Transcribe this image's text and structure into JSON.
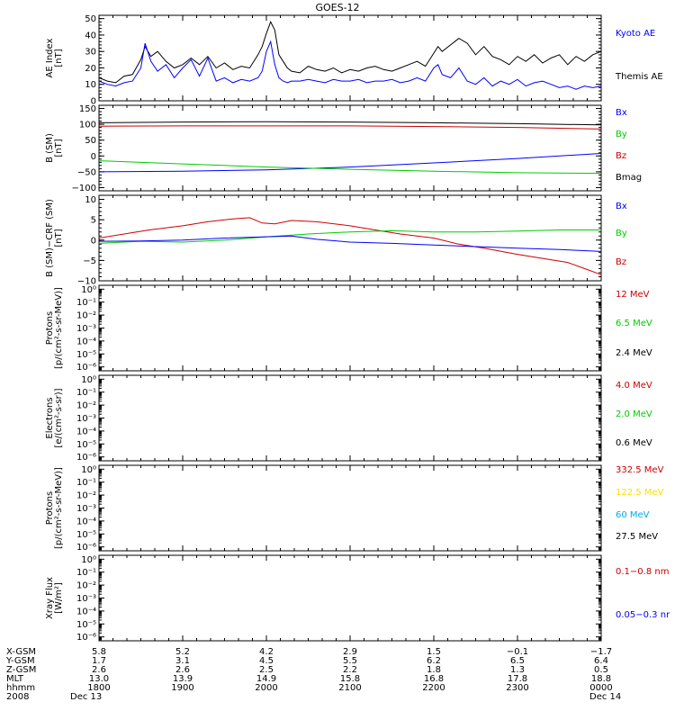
{
  "title": "GOES-12",
  "panels": [
    {
      "id": "ae",
      "ylabel": [
        "AE Index",
        "[nT]"
      ],
      "scale": "linear",
      "ylim": [
        0,
        52
      ],
      "ticks": [
        0,
        10,
        20,
        30,
        40,
        50
      ],
      "tick_labels": [
        "0",
        "10",
        "20",
        "30",
        "40",
        "50"
      ],
      "legend": [
        {
          "label": "Kyoto AE",
          "color": "#0000ff"
        },
        {
          "label": "Themis AE",
          "color": "#000000"
        }
      ]
    },
    {
      "id": "b-sm",
      "ylabel": [
        "B (SM)",
        "[nT]"
      ],
      "scale": "linear",
      "ylim": [
        -110,
        160
      ],
      "ticks": [
        -100,
        -50,
        0,
        50,
        100,
        150
      ],
      "tick_labels": [
        "−100",
        "−50",
        "0",
        "50",
        "100",
        "150"
      ],
      "legend": [
        {
          "label": "Bx",
          "color": "#0000ff"
        },
        {
          "label": "By",
          "color": "#00cc00"
        },
        {
          "label": "Bz",
          "color": "#cc0000"
        },
        {
          "label": "Bmag",
          "color": "#000000"
        }
      ]
    },
    {
      "id": "b-crf",
      "ylabel": [
        "B (SM)−CRF (SM)",
        "[nT]"
      ],
      "scale": "linear",
      "ylim": [
        -10,
        11
      ],
      "ticks": [
        -10,
        -5,
        0,
        5,
        10
      ],
      "tick_labels": [
        "−10",
        "−5",
        "0",
        "5",
        "10"
      ],
      "legend": [
        {
          "label": "Bx",
          "color": "#0000ff"
        },
        {
          "label": "By",
          "color": "#00cc00"
        },
        {
          "label": "Bz",
          "color": "#cc0000"
        }
      ]
    },
    {
      "id": "protons-1",
      "ylabel": [
        "Protons",
        "[p/(cm²-s-sr-MeV)]"
      ],
      "scale": "log",
      "ylim": [
        -6.3,
        0.3
      ],
      "ticks": [
        0,
        -1,
        -2,
        -3,
        -4,
        -5,
        -6
      ],
      "tick_labels": [
        "10⁰",
        "10⁻¹",
        "10⁻²",
        "10⁻³",
        "10⁻⁴",
        "10⁻⁵",
        "10⁻⁶"
      ],
      "legend": [
        {
          "label": "12 MeV",
          "color": "#cc0000"
        },
        {
          "label": "6.5 MeV",
          "color": "#00cc00"
        },
        {
          "label": "2.4 MeV",
          "color": "#000000"
        }
      ]
    },
    {
      "id": "electrons",
      "ylabel": [
        "Electrons",
        "[e/(cm²-s-sr)]"
      ],
      "scale": "log",
      "ylim": [
        -6.3,
        0.3
      ],
      "ticks": [
        0,
        -1,
        -2,
        -3,
        -4,
        -5,
        -6
      ],
      "tick_labels": [
        "10⁰",
        "10⁻¹",
        "10⁻²",
        "10⁻³",
        "10⁻⁴",
        "10⁻⁵",
        "10⁻⁶"
      ],
      "legend": [
        {
          "label": "4.0 MeV",
          "color": "#cc0000"
        },
        {
          "label": "2.0 MeV",
          "color": "#00cc00"
        },
        {
          "label": "0.6 MeV",
          "color": "#000000"
        }
      ]
    },
    {
      "id": "protons-2",
      "ylabel": [
        "Protons",
        "[p/(cm²-s-sr-MeV)]"
      ],
      "scale": "log",
      "ylim": [
        -6.3,
        0.3
      ],
      "ticks": [
        0,
        -1,
        -2,
        -3,
        -4,
        -5,
        -6
      ],
      "tick_labels": [
        "10⁰",
        "10⁻¹",
        "10⁻²",
        "10⁻³",
        "10⁻⁴",
        "10⁻⁵",
        "10⁻⁶"
      ],
      "legend": [
        {
          "label": "332.5 MeV",
          "color": "#cc0000"
        },
        {
          "label": "122.5 MeV",
          "color": "#ffdd00"
        },
        {
          "label": "60 MeV",
          "color": "#00aaee"
        },
        {
          "label": "27.5 MeV",
          "color": "#000000"
        }
      ]
    },
    {
      "id": "xray",
      "ylabel": [
        "Xray Flux",
        "[W/m²]"
      ],
      "scale": "log",
      "ylim": [
        -6.3,
        0.3
      ],
      "ticks": [
        0,
        -1,
        -2,
        -3,
        -4,
        -5,
        -6
      ],
      "tick_labels": [
        "10⁰",
        "10⁻¹",
        "10⁻²",
        "10⁻³",
        "10⁻⁴",
        "10⁻⁵",
        "10⁻⁶"
      ],
      "legend": [
        {
          "label": "0.1−0.8 nm",
          "color": "#cc0000"
        },
        {
          "label": "0.05−0.3 nr",
          "color": "#0000ff"
        }
      ]
    }
  ],
  "x_axis": {
    "row_labels": [
      "X-GSM",
      "Y-GSM",
      "Z-GSM",
      "MLT",
      "hhmm",
      "2008"
    ],
    "columns": [
      {
        "x": 18,
        "values": [
          "5.8",
          "1.7",
          "2.6",
          "13.0",
          "1800",
          "Dec 13"
        ]
      },
      {
        "x": 19,
        "values": [
          "5.2",
          "3.1",
          "2.6",
          "13.9",
          "1900",
          ""
        ]
      },
      {
        "x": 20,
        "values": [
          "4.2",
          "4.5",
          "2.5",
          "14.9",
          "2000",
          ""
        ]
      },
      {
        "x": 21,
        "values": [
          "2.9",
          "5.5",
          "2.2",
          "15.8",
          "2100",
          ""
        ]
      },
      {
        "x": 22,
        "values": [
          "1.5",
          "6.2",
          "1.8",
          "16.8",
          "2200",
          ""
        ]
      },
      {
        "x": 23,
        "values": [
          "−0.1",
          "6.5",
          "1.3",
          "17.8",
          "2300",
          ""
        ]
      },
      {
        "x": 24,
        "values": [
          "−1.7",
          "6.4",
          "0.5",
          "18.8",
          "0000",
          "Dec 14"
        ]
      }
    ],
    "xlim": [
      18,
      24
    ]
  },
  "chart_data": [
    {
      "type": "line",
      "panel": "ae",
      "series": [
        {
          "name": "Themis AE",
          "color": "#000000",
          "x": [
            18.0,
            18.1,
            18.2,
            18.3,
            18.4,
            18.5,
            18.55,
            18.62,
            18.7,
            18.8,
            18.9,
            19.0,
            19.1,
            19.2,
            19.3,
            19.4,
            19.5,
            19.6,
            19.7,
            19.8,
            19.9,
            19.95,
            20.0,
            20.05,
            20.1,
            20.15,
            20.2,
            20.25,
            20.3,
            20.4,
            20.5,
            20.6,
            20.7,
            20.8,
            20.9,
            21.0,
            21.1,
            21.2,
            21.3,
            21.4,
            21.5,
            21.6,
            21.7,
            21.8,
            21.9,
            22.0,
            22.05,
            22.1,
            22.2,
            22.3,
            22.4,
            22.5,
            22.6,
            22.7,
            22.8,
            22.9,
            23.0,
            23.1,
            23.2,
            23.3,
            23.4,
            23.5,
            23.6,
            23.7,
            23.8,
            23.9,
            24.0
          ],
          "y": [
            14,
            12,
            11,
            15,
            16,
            25,
            33,
            27,
            30,
            24,
            20,
            22,
            26,
            22,
            27,
            20,
            23,
            19,
            21,
            20,
            28,
            33,
            41,
            48,
            43,
            28,
            24,
            20,
            18,
            17,
            21,
            19,
            18,
            20,
            17,
            19,
            18,
            20,
            21,
            19,
            18,
            20,
            22,
            24,
            21,
            29,
            33,
            30,
            34,
            38,
            35,
            28,
            33,
            27,
            25,
            22,
            27,
            24,
            28,
            23,
            26,
            28,
            22,
            27,
            24,
            28,
            30
          ]
        },
        {
          "name": "Kyoto AE",
          "color": "#0000ff",
          "x": [
            18.0,
            18.1,
            18.2,
            18.3,
            18.4,
            18.5,
            18.55,
            18.62,
            18.7,
            18.8,
            18.9,
            19.0,
            19.1,
            19.2,
            19.3,
            19.4,
            19.5,
            19.6,
            19.7,
            19.8,
            19.9,
            19.95,
            20.0,
            20.05,
            20.1,
            20.15,
            20.2,
            20.25,
            20.3,
            20.4,
            20.5,
            20.6,
            20.7,
            20.8,
            20.9,
            21.0,
            21.1,
            21.2,
            21.3,
            21.4,
            21.5,
            21.6,
            21.7,
            21.8,
            21.9,
            22.0,
            22.05,
            22.1,
            22.2,
            22.3,
            22.4,
            22.5,
            22.6,
            22.7,
            22.8,
            22.9,
            23.0,
            23.1,
            23.2,
            23.3,
            23.4,
            23.5,
            23.6,
            23.7,
            23.8,
            23.9,
            24.0
          ],
          "y": [
            12,
            10,
            9,
            11,
            12,
            20,
            35,
            24,
            18,
            22,
            14,
            20,
            25,
            15,
            26,
            12,
            14,
            11,
            13,
            12,
            14,
            18,
            30,
            36,
            22,
            14,
            12,
            11,
            12,
            12,
            13,
            12,
            11,
            13,
            12,
            12,
            13,
            11,
            12,
            12,
            13,
            11,
            12,
            14,
            12,
            20,
            22,
            16,
            14,
            20,
            12,
            10,
            14,
            9,
            12,
            10,
            13,
            9,
            11,
            12,
            10,
            8,
            9,
            7,
            9,
            8,
            9
          ]
        }
      ]
    },
    {
      "type": "line",
      "panel": "b-sm",
      "series": [
        {
          "name": "Bmag",
          "color": "#000000",
          "x": [
            18,
            19,
            20,
            21,
            22,
            23,
            24
          ],
          "y": [
            105,
            107,
            108,
            107,
            105,
            102,
            98
          ]
        },
        {
          "name": "Bz",
          "color": "#cc0000",
          "x": [
            18,
            19,
            20,
            21,
            22,
            23,
            24
          ],
          "y": [
            94,
            95,
            95,
            95,
            93,
            90,
            85
          ]
        },
        {
          "name": "Bx",
          "color": "#0000ff",
          "x": [
            18,
            19,
            20,
            21,
            22,
            23,
            24
          ],
          "y": [
            -50,
            -48,
            -44,
            -35,
            -22,
            -8,
            8
          ]
        },
        {
          "name": "By",
          "color": "#00cc00",
          "x": [
            18,
            19,
            20,
            21,
            22,
            23,
            24
          ],
          "y": [
            -15,
            -25,
            -35,
            -42,
            -48,
            -53,
            -55
          ]
        }
      ]
    },
    {
      "type": "line",
      "panel": "b-crf",
      "series": [
        {
          "name": "Bz",
          "color": "#cc0000",
          "x": [
            18.0,
            18.3,
            18.6,
            19.0,
            19.3,
            19.6,
            19.8,
            19.95,
            20.1,
            20.3,
            20.6,
            21.0,
            21.3,
            21.6,
            22.0,
            22.3,
            22.6,
            23.0,
            23.3,
            23.6,
            23.8,
            24.0
          ],
          "y": [
            0.5,
            1.5,
            2.5,
            3.5,
            4.5,
            5.2,
            5.5,
            4.2,
            4.0,
            4.8,
            4.5,
            3.5,
            2.5,
            1.5,
            0.5,
            -1.0,
            -2.0,
            -3.5,
            -4.5,
            -5.5,
            -7.0,
            -8.5
          ]
        },
        {
          "name": "By",
          "color": "#00cc00",
          "x": [
            18.0,
            18.5,
            19.0,
            19.5,
            20.0,
            20.5,
            21.0,
            21.5,
            22.0,
            22.5,
            23.0,
            23.5,
            24.0
          ],
          "y": [
            -0.8,
            -0.3,
            -0.5,
            0.0,
            0.8,
            1.5,
            2.0,
            2.3,
            2.0,
            2.0,
            2.2,
            2.5,
            2.5
          ]
        },
        {
          "name": "Bx",
          "color": "#0000ff",
          "x": [
            18.0,
            18.5,
            19.0,
            19.5,
            20.0,
            20.3,
            20.6,
            21.0,
            21.5,
            22.0,
            22.5,
            23.0,
            23.5,
            24.0
          ],
          "y": [
            -0.3,
            -0.2,
            0.0,
            0.5,
            0.8,
            1.0,
            0.2,
            -0.5,
            -0.8,
            -1.2,
            -1.6,
            -2.0,
            -2.3,
            -2.8
          ]
        }
      ]
    }
  ]
}
